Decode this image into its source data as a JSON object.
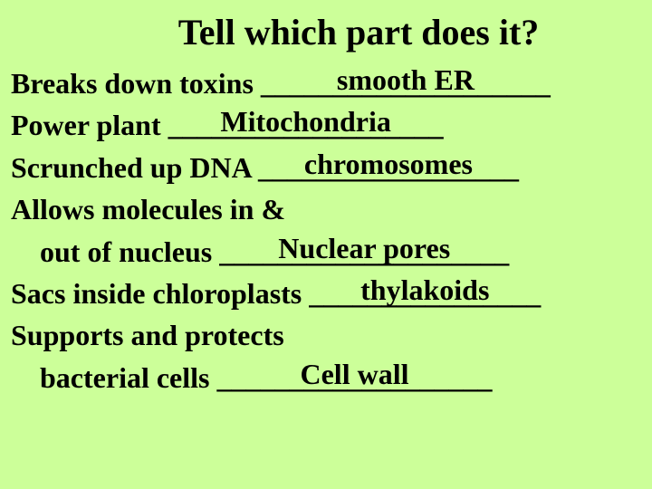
{
  "background_color": "#ccff99",
  "text_color": "#000000",
  "font_family": "Times New Roman",
  "title": "Tell which part does it?",
  "title_fontsize": 40,
  "body_fontsize": 32,
  "rows": [
    {
      "prompt": "Breaks down toxins ",
      "answer": "smooth ER",
      "underline": "____________________",
      "indent": false
    },
    {
      "prompt": "Power plant  ",
      "answer": "Mitochondria",
      "underline": "___________________",
      "indent": false
    },
    {
      "prompt": "Scrunched up DNA ",
      "answer": "chromosomes",
      "underline": "__________________",
      "indent": false
    },
    {
      "prompt": "Allows molecules in &",
      "answer": "",
      "underline": "",
      "indent": false
    },
    {
      "prompt": "out of nucleus ",
      "answer": "Nuclear pores",
      "underline": "____________________",
      "indent": true
    },
    {
      "prompt": "Sacs inside chloroplasts   ",
      "answer": "thylakoids",
      "underline": "________________",
      "indent": false
    },
    {
      "prompt": "Supports and protects",
      "answer": "",
      "underline": "",
      "indent": false
    },
    {
      "prompt": "bacterial cells  ",
      "answer": "Cell wall",
      "underline": "___________________",
      "indent": true
    }
  ]
}
